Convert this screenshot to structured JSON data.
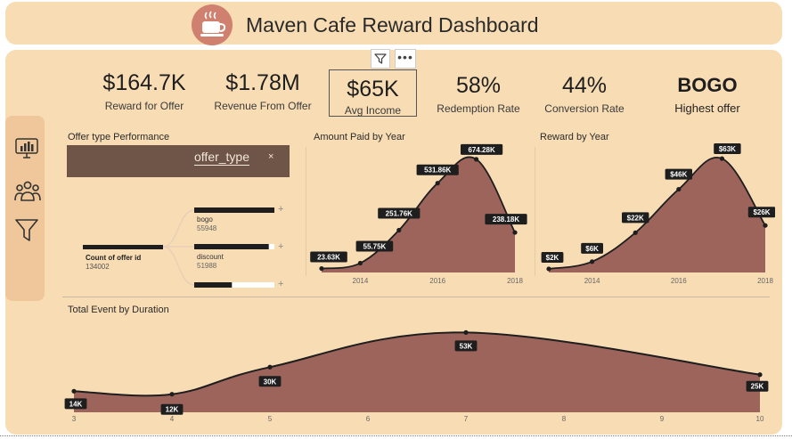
{
  "header": {
    "title": "Maven Cafe Reward Dashboard",
    "logo_icon": "coffee-cup-icon"
  },
  "sidebar": {
    "icons": [
      "dashboard-monitor-icon",
      "people-group-icon",
      "funnel-filter-icon"
    ]
  },
  "toolbar": {
    "filter_icon": "funnel-icon",
    "more_label": "•••"
  },
  "kpis": [
    {
      "value": "$164.7K",
      "label": "Reward for Offer"
    },
    {
      "value": "$1.78M",
      "label": "Revenue From Offer"
    },
    {
      "value": "$65K",
      "label": "Avg Income"
    },
    {
      "value": "58%",
      "label": "Redemption Rate"
    },
    {
      "value": "44%",
      "label": "Conversion Rate"
    },
    {
      "value": "BOGO",
      "label": "Highest offer"
    }
  ],
  "offer_panel": {
    "title": "Offer type Performance",
    "slicer_label": "offer_type",
    "slicer_clear": "×",
    "root": {
      "label": "Count of offer id",
      "value": "134002"
    },
    "nodes": [
      {
        "label": "bogo",
        "value": "55948",
        "fill": 1.0
      },
      {
        "label": "discount",
        "value": "51988",
        "fill": 0.93
      },
      {
        "label": "",
        "value": "",
        "fill": 0.47
      }
    ],
    "plus": "+"
  },
  "chart_data": [
    {
      "type": "area",
      "title": "Amount Paid by Year",
      "x": [
        2013,
        2014,
        2015,
        2016,
        2017,
        2018
      ],
      "values": [
        23630,
        55750,
        251760,
        531860,
        674280,
        238180
      ],
      "labels": [
        "23.63K",
        "55.75K",
        "251.76K",
        "531.86K",
        "674.28K",
        "238.18K"
      ],
      "tick_labels": [
        "2014",
        "2016",
        "2018"
      ],
      "ylim": [
        0,
        700000
      ]
    },
    {
      "type": "area",
      "title": "Reward by Year",
      "x": [
        2013,
        2014,
        2015,
        2016,
        2017,
        2018
      ],
      "values": [
        2000,
        6000,
        22000,
        46000,
        63000,
        26000
      ],
      "labels": [
        "$2K",
        "$6K",
        "$22K",
        "$46K",
        "$63K",
        "$26K"
      ],
      "tick_labels": [
        "2014",
        "2016",
        "2018"
      ],
      "ylim": [
        0,
        65000
      ]
    },
    {
      "type": "area",
      "title": "Total Event by Duration",
      "x": [
        3,
        4,
        5,
        7,
        10
      ],
      "values": [
        14000,
        12000,
        30000,
        53000,
        25000
      ],
      "labels": [
        "14K",
        "12K",
        "30K",
        "53K",
        "25K"
      ],
      "tick_labels": [
        "3",
        "4",
        "5",
        "6",
        "7",
        "8",
        "9",
        "10"
      ],
      "ylim": [
        0,
        55000
      ]
    }
  ],
  "colors": {
    "area_fill": "#9c645b",
    "line": "#1e1e1e",
    "label_bg": "#1e1e1e",
    "label_text": "#ffffff",
    "page_bg": "#f8dcb4"
  }
}
